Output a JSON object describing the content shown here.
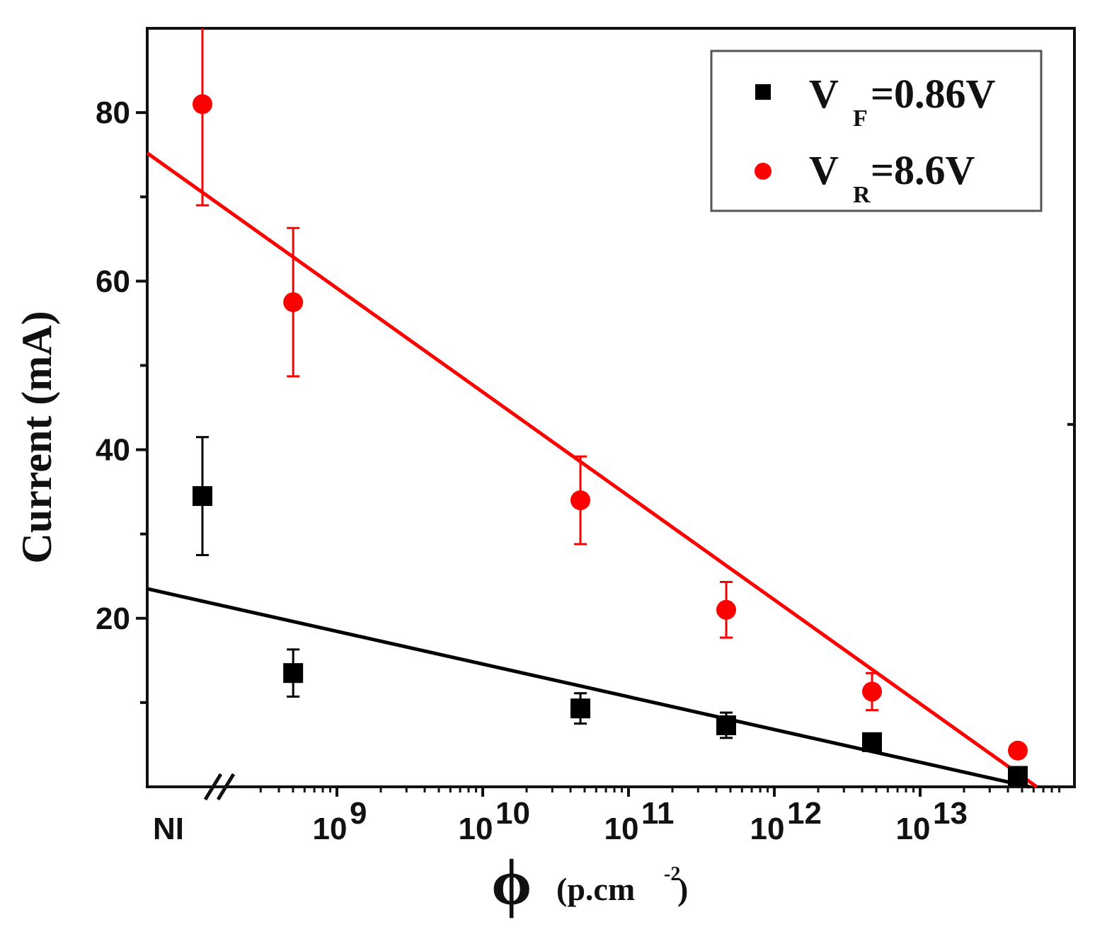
{
  "chart_data": {
    "type": "scatter",
    "title": "",
    "xlabel": {
      "symbol": "ϕ",
      "unit_prefix": "(p.cm",
      "unit_exp": "-2",
      "unit_suffix": ")"
    },
    "ylabel": "Current (mA)",
    "x_scale": "log with axis break",
    "x_ticks": [
      {
        "label": "NI",
        "exp": null,
        "pos": "NI"
      },
      {
        "label": "10",
        "exp": "9",
        "pos": 9
      },
      {
        "label": "10",
        "exp": "10",
        "pos": 10
      },
      {
        "label": "10",
        "exp": "11",
        "pos": 11
      },
      {
        "label": "10",
        "exp": "12",
        "pos": 12
      },
      {
        "label": "10",
        "exp": "13",
        "pos": 13
      }
    ],
    "y_ticks": [
      20,
      40,
      60,
      80
    ],
    "ylim": [
      0,
      90
    ],
    "legend_position": "top-right",
    "series": [
      {
        "name_main": "V",
        "name_sub": "F",
        "name_rest": "=0.86V",
        "marker": "square",
        "color": "#000000",
        "points": [
          {
            "x": "NI",
            "y": 34.5,
            "err": 7
          },
          {
            "x": 8.7,
            "y": 13.5,
            "err": 2.8
          },
          {
            "x": 10.67,
            "y": 9.3,
            "err": 1.8
          },
          {
            "x": 11.67,
            "y": 7.3,
            "err": 1.5
          },
          {
            "x": 12.67,
            "y": 5.3,
            "err": 1.0
          },
          {
            "x": 13.67,
            "y": 1.3,
            "err": 0.8
          }
        ],
        "fit": {
          "x0": 7.0,
          "y0": 23.5,
          "x1": 13.75,
          "y1": 0.0
        }
      },
      {
        "name_main": "V",
        "name_sub": "R",
        "name_rest": "=8.6V",
        "marker": "circle",
        "color": "#ff0000",
        "points": [
          {
            "x": "NI",
            "y": 81,
            "err": 12
          },
          {
            "x": 8.7,
            "y": 57.5,
            "err": 8.8
          },
          {
            "x": 10.67,
            "y": 34,
            "err": 5.2
          },
          {
            "x": 11.67,
            "y": 21,
            "err": 3.3
          },
          {
            "x": 12.67,
            "y": 11.3,
            "err": 2.2
          },
          {
            "x": 13.67,
            "y": 4.3,
            "err": 0.6
          }
        ],
        "fit": {
          "x0": 7.0,
          "y0": 75.2,
          "x1": 13.8,
          "y1": 0.0
        }
      }
    ]
  }
}
